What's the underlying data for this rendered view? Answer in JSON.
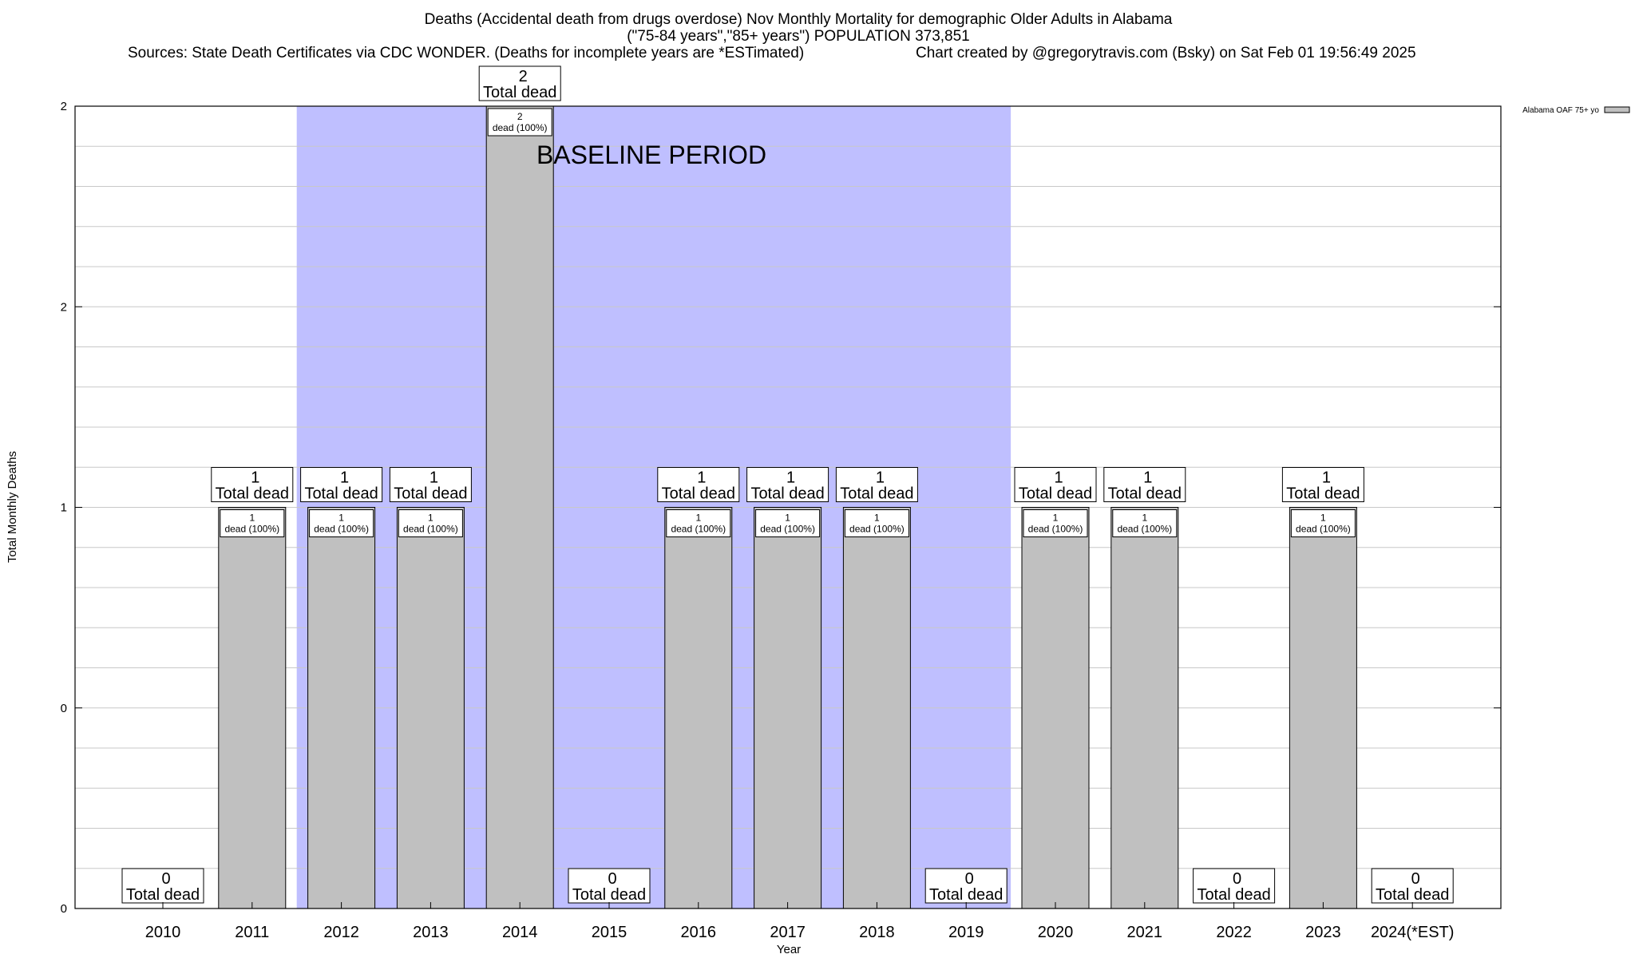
{
  "chart_data": {
    "type": "bar",
    "title_lines": [
      "Deaths (Accidental death from drugs overdose) Nov Monthly Mortality for demographic Older Adults in Alabama",
      "(\"75-84 years\",\"85+ years\") POPULATION 373,851"
    ],
    "source_text": "Sources: State Death Certificates via CDC WONDER. (Deaths for incomplete years are *ESTimated)",
    "credit_text": "Chart created by @gregorytravis.com (Bsky) on Sat Feb 01 19:56:49 2025",
    "xlabel": "Year",
    "ylabel": "Total Monthly Deaths",
    "y_tick_labels": [
      "0",
      "0",
      "1",
      "2",
      "2"
    ],
    "ylim": [
      0,
      2
    ],
    "grid": true,
    "categories": [
      "2010",
      "2011",
      "2012",
      "2013",
      "2014",
      "2015",
      "2016",
      "2017",
      "2018",
      "2019",
      "2020",
      "2021",
      "2022",
      "2023",
      "2024(*EST)"
    ],
    "series": [
      {
        "name": "Alabama OAF 75+ yo",
        "color": "#c0c0c0",
        "values": [
          0,
          1,
          1,
          1,
          2,
          0,
          1,
          1,
          1,
          0,
          1,
          1,
          0,
          1,
          0
        ]
      }
    ],
    "total_labels": [
      "0",
      "1",
      "1",
      "1",
      "2",
      "0",
      "1",
      "1",
      "1",
      "0",
      "1",
      "1",
      "0",
      "1",
      "0"
    ],
    "total_label_suffix": "Total dead",
    "inner_labels": [
      "1\ndead (100%)",
      "1\ndead (100%)",
      "1\ndead (100%)",
      "2\ndead (100%)",
      "1\ndead (100%)",
      "1\ndead (100%)",
      "1\ndead (100%)",
      "1\ndead (100%)",
      "1\ndead (100%)",
      "1\ndead (100%)"
    ],
    "baseline": {
      "label": "BASELINE PERIOD",
      "from": "2012",
      "to": "2019",
      "color": "#bfbfff"
    },
    "legend_position": "top-right"
  }
}
